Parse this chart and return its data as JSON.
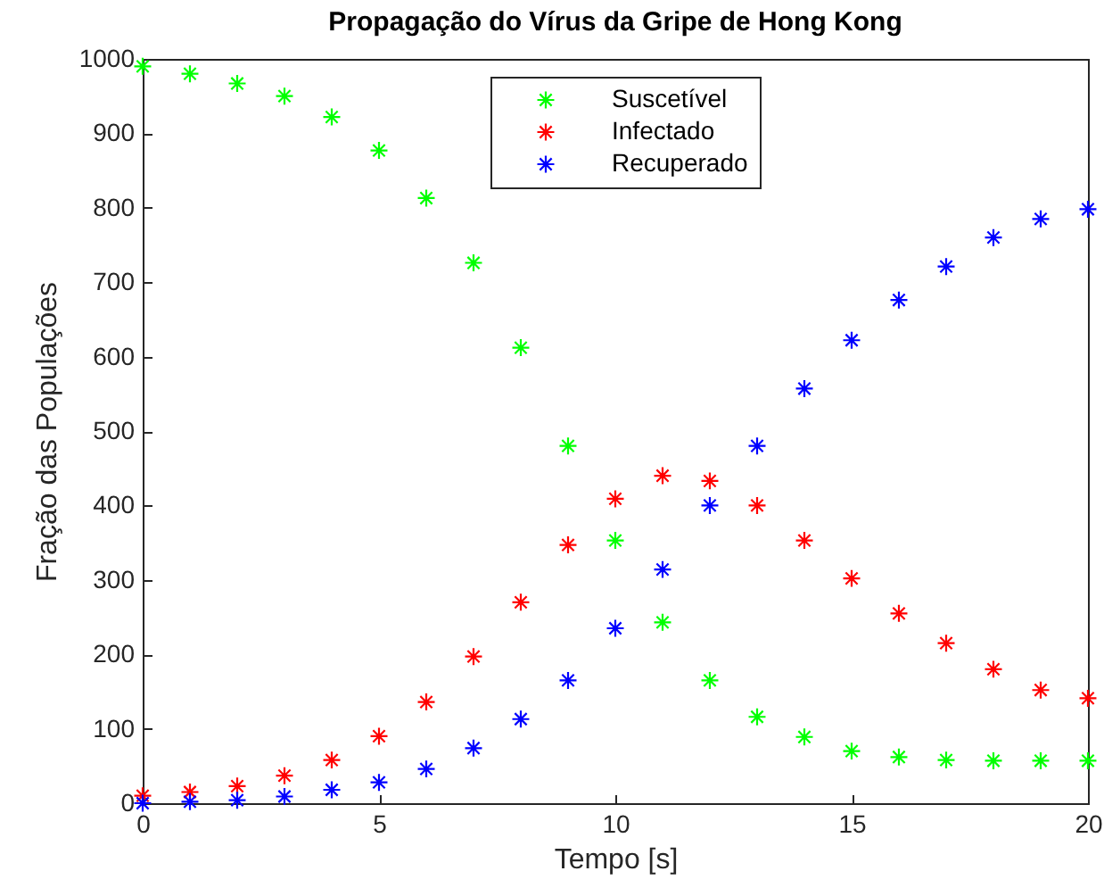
{
  "chart_data": {
    "type": "scatter",
    "title": "Propagação do Vírus da Gripe de Hong Kong",
    "xlabel": "Tempo [s]",
    "ylabel": "Fração das Populações",
    "x": [
      0,
      1,
      2,
      3,
      4,
      5,
      6,
      7,
      8,
      9,
      10,
      11,
      12,
      13,
      14,
      15,
      16,
      17,
      18,
      19,
      20
    ],
    "series": [
      {
        "name": "Suscetível",
        "color": "#00ff00",
        "values": [
          990,
          980,
          967,
          950,
          922,
          877,
          813,
          726,
          612,
          480,
          353,
          243,
          165,
          116,
          89,
          70,
          62,
          58,
          57,
          57,
          57
        ]
      },
      {
        "name": "Infectado",
        "color": "#ff0000",
        "values": [
          10,
          15,
          23,
          37,
          58,
          90,
          136,
          197,
          270,
          347,
          409,
          440,
          433,
          400,
          353,
          302,
          255,
          215,
          180,
          152,
          141
        ]
      },
      {
        "name": "Recuperado",
        "color": "#0000ff",
        "values": [
          0,
          2,
          4,
          9,
          18,
          28,
          46,
          74,
          113,
          165,
          235,
          314,
          400,
          480,
          557,
          622,
          676,
          721,
          760,
          785,
          798
        ]
      }
    ],
    "xlim": [
      0,
      20
    ],
    "xticks": [
      0,
      5,
      10,
      15,
      20
    ],
    "ylim": [
      0,
      1000
    ],
    "yticks": [
      0,
      100,
      200,
      300,
      400,
      500,
      600,
      700,
      800,
      900,
      1000
    ],
    "marker": "cross",
    "legend": "top",
    "grid": false
  }
}
